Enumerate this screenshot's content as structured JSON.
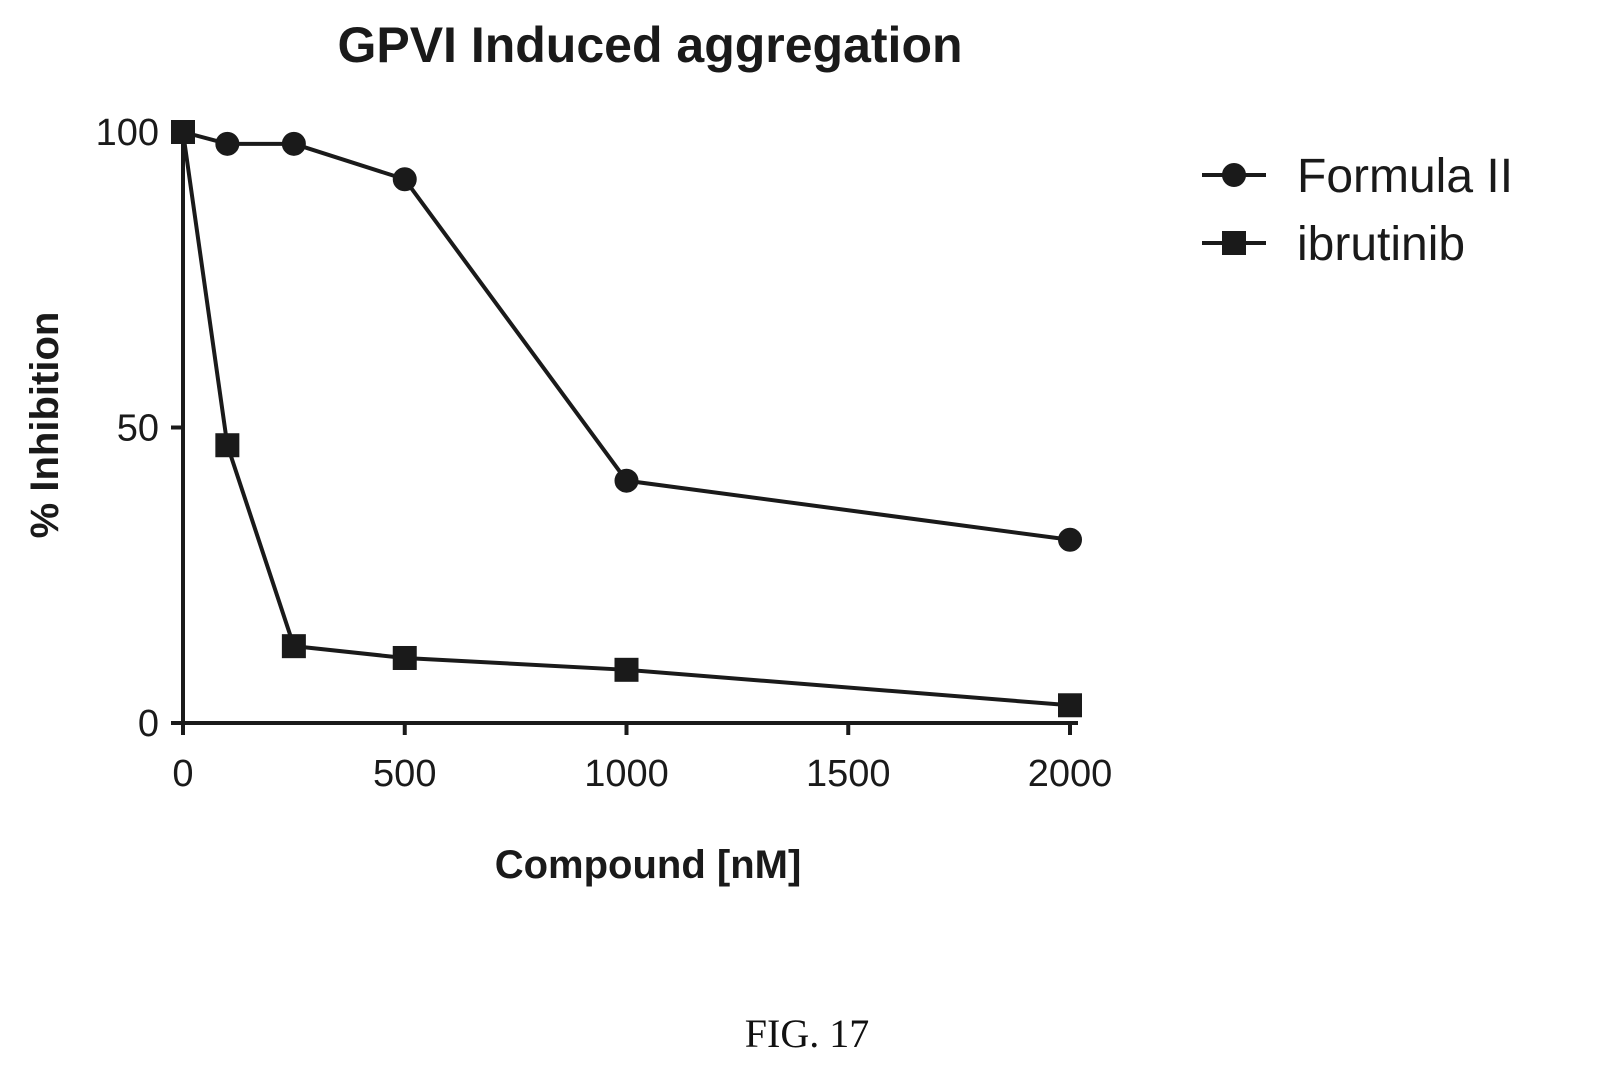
{
  "figure_caption": "FIG. 17",
  "chart_data": {
    "type": "line",
    "title": "GPVI Induced aggregation",
    "xlabel": "Compound  [nM]",
    "ylabel": "% Inhibition",
    "xlim": [
      0,
      2000
    ],
    "ylim": [
      0,
      100
    ],
    "xticks": [
      0,
      500,
      1000,
      1500,
      2000
    ],
    "yticks": [
      0,
      50,
      100
    ],
    "grid": false,
    "legend_position": "top-right outside",
    "series": [
      {
        "name": "Formula II",
        "marker": "circle",
        "color": "#1a1a1a",
        "points": [
          [
            0,
            100
          ],
          [
            100,
            98
          ],
          [
            250,
            98
          ],
          [
            500,
            92
          ],
          [
            1000,
            41
          ],
          [
            2000,
            31
          ]
        ]
      },
      {
        "name": "ibrutinib",
        "marker": "square",
        "color": "#1a1a1a",
        "points": [
          [
            0,
            100
          ],
          [
            100,
            47
          ],
          [
            250,
            13
          ],
          [
            500,
            11
          ],
          [
            1000,
            9
          ],
          [
            2000,
            3
          ]
        ]
      }
    ]
  }
}
